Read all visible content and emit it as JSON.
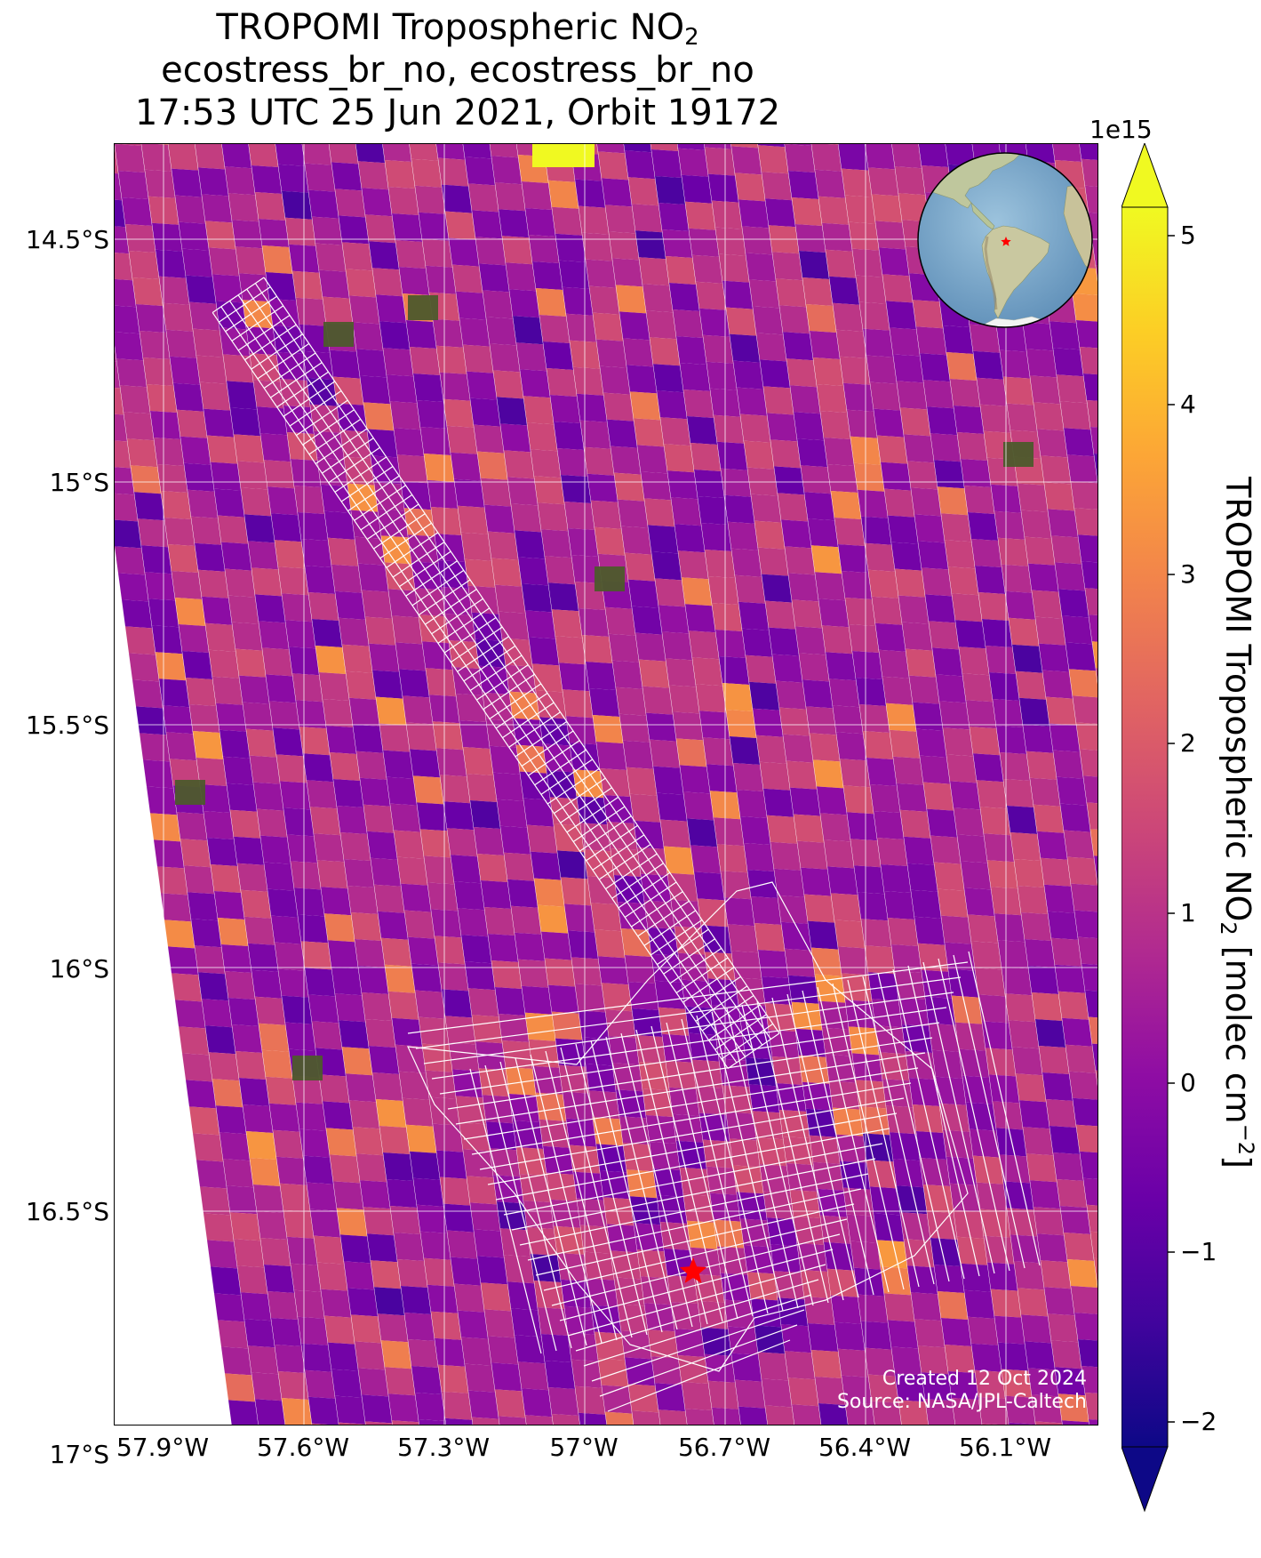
{
  "title": {
    "line1_main": "TROPOMI Tropospheric NO",
    "line1_sub": "2",
    "line2": "ecostress_br_no, ecostress_br_no",
    "line3": "17:53 UTC 25 Jun 2021, Orbit 19172"
  },
  "map": {
    "lat_ticks": [
      "14.5°S",
      "15°S",
      "15.5°S",
      "16°S",
      "16.5°S",
      "17°S"
    ],
    "lon_ticks": [
      "57.9°W",
      "57.6°W",
      "57.3°W",
      "57°W",
      "56.7°W",
      "56.4°W",
      "56.1°W"
    ],
    "credit_created": "Created 12 Oct 2024",
    "credit_source": "Source: NASA/JPL-Caltech",
    "marker": "red-star",
    "overlay_color": "#ffffff"
  },
  "colorbar": {
    "exponent": "1e15",
    "ticks": [
      "5",
      "4",
      "3",
      "2",
      "1",
      "0",
      "−1",
      "−2"
    ],
    "label_main": "TROPOMI Tropospheric NO",
    "label_sub": "2",
    "label_units_pre": " [molec cm",
    "label_sup": "−2",
    "label_units_post": "]",
    "colormap": "plasma",
    "min": -2.4,
    "max": 5.2
  },
  "inset": {
    "type": "globe",
    "ocean_color": "#7ba7cc",
    "land_color": "#b9c49a",
    "marker": "red-star"
  }
}
